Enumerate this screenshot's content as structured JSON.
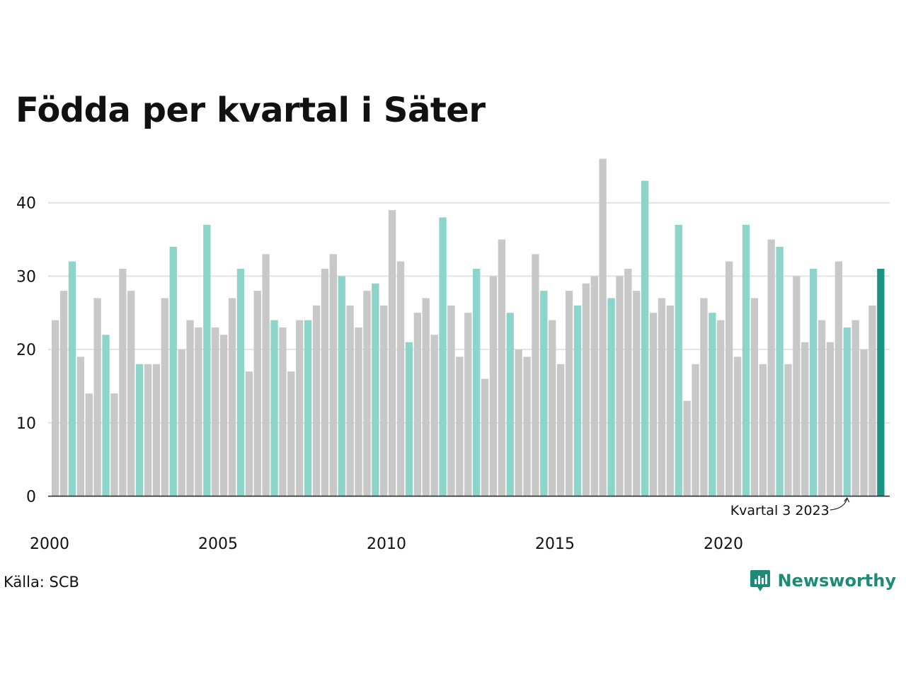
{
  "title": "Födda per kvartal i Säter",
  "source": "Källa: SCB",
  "brand": {
    "name": "Newsworthy",
    "icon": "newsworthy-logo-icon"
  },
  "colors": {
    "highlight": "#8dd4cb",
    "default": "#c8c8c8",
    "latest": "#1a9484",
    "grid": "#e2e2e2",
    "axis": "#222222"
  },
  "chart_data": {
    "type": "bar",
    "title": "Födda per kvartal i Säter",
    "xlabel": "",
    "ylabel": "",
    "ylim": [
      0,
      46
    ],
    "yticks": [
      0,
      10,
      20,
      30,
      40
    ],
    "xticks": [
      "2000",
      "2005",
      "2010",
      "2015",
      "2020"
    ],
    "grid": true,
    "categories_start": "2000 Q1",
    "highlight_quarter": 3,
    "annotation": {
      "text": "Kvartal 3 2023",
      "year": 2023,
      "quarter": 3
    },
    "values": [
      24,
      28,
      32,
      19,
      14,
      27,
      22,
      14,
      31,
      28,
      18,
      18,
      18,
      27,
      34,
      20,
      24,
      23,
      37,
      23,
      22,
      27,
      31,
      17,
      28,
      33,
      24,
      23,
      17,
      24,
      24,
      26,
      31,
      33,
      30,
      26,
      23,
      28,
      29,
      26,
      39,
      32,
      21,
      25,
      27,
      22,
      38,
      26,
      19,
      25,
      31,
      16,
      30,
      35,
      25,
      20,
      19,
      33,
      28,
      24,
      18,
      28,
      26,
      29,
      30,
      46,
      27,
      30,
      31,
      28,
      43,
      25,
      27,
      26,
      37,
      13,
      18,
      27,
      25,
      24,
      32,
      19,
      37,
      27,
      18,
      35,
      34,
      18,
      30,
      21,
      31,
      24,
      21,
      32,
      23,
      24,
      20,
      26,
      31
    ]
  }
}
